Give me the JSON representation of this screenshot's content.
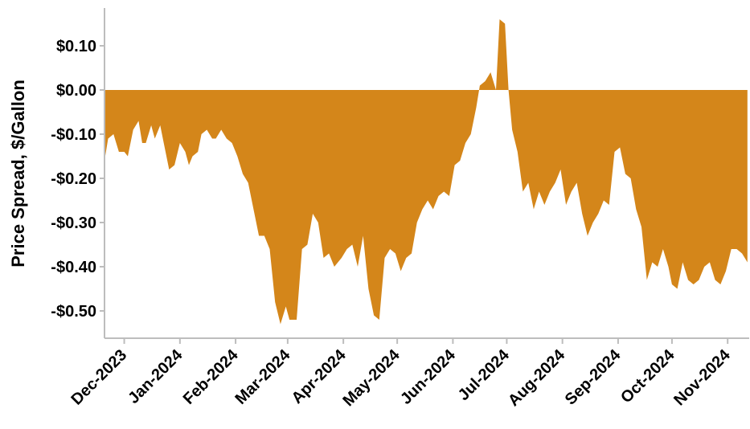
{
  "chart_data": {
    "type": "area",
    "title": "",
    "xlabel": "",
    "ylabel": "Price Spread, $/Gallon",
    "ylim": [
      -0.56,
      0.18
    ],
    "xlim": [
      "2023-11-20",
      "2024-11-27"
    ],
    "y_ticks": [
      0.1,
      0.0,
      -0.1,
      -0.2,
      -0.3,
      -0.4,
      -0.5
    ],
    "y_tick_labels": [
      "$0.10",
      "$0.00",
      "-$0.10",
      "-$0.20",
      "-$0.30",
      "-$0.40",
      "-$0.50"
    ],
    "x_ticks": [
      "2023-12-01",
      "2024-01-01",
      "2024-02-01",
      "2024-03-01",
      "2024-04-01",
      "2024-05-01",
      "2024-06-01",
      "2024-07-01",
      "2024-08-01",
      "2024-09-01",
      "2024-10-01",
      "2024-11-01"
    ],
    "x_tick_labels": [
      "Dec-2023",
      "Jan-2024",
      "Feb-2024",
      "Mar-2024",
      "Apr-2024",
      "May-2024",
      "Jun-2024",
      "Jul-2024",
      "Aug-2024",
      "Sep-2024",
      "Oct-2024",
      "Nov-2024"
    ],
    "fill_color": "#D4861A",
    "grid": false,
    "series": [
      {
        "name": "",
        "points": [
          [
            "2023-11-20",
            -0.16
          ],
          [
            "2023-11-22",
            -0.11
          ],
          [
            "2023-11-25",
            -0.1
          ],
          [
            "2023-11-28",
            -0.14
          ],
          [
            "2023-12-01",
            -0.14
          ],
          [
            "2023-12-03",
            -0.15
          ],
          [
            "2023-12-06",
            -0.09
          ],
          [
            "2023-12-09",
            -0.07
          ],
          [
            "2023-12-11",
            -0.12
          ],
          [
            "2023-12-13",
            -0.12
          ],
          [
            "2023-12-16",
            -0.08
          ],
          [
            "2023-12-18",
            -0.11
          ],
          [
            "2023-12-21",
            -0.08
          ],
          [
            "2023-12-23",
            -0.12
          ],
          [
            "2023-12-26",
            -0.18
          ],
          [
            "2023-12-29",
            -0.17
          ],
          [
            "2024-01-01",
            -0.12
          ],
          [
            "2024-01-04",
            -0.14
          ],
          [
            "2024-01-06",
            -0.17
          ],
          [
            "2024-01-08",
            -0.15
          ],
          [
            "2024-01-11",
            -0.14
          ],
          [
            "2024-01-13",
            -0.1
          ],
          [
            "2024-01-16",
            -0.09
          ],
          [
            "2024-01-19",
            -0.11
          ],
          [
            "2024-01-21",
            -0.11
          ],
          [
            "2024-01-24",
            -0.09
          ],
          [
            "2024-01-27",
            -0.11
          ],
          [
            "2024-01-30",
            -0.12
          ],
          [
            "2024-02-02",
            -0.15
          ],
          [
            "2024-02-05",
            -0.19
          ],
          [
            "2024-02-08",
            -0.21
          ],
          [
            "2024-02-11",
            -0.27
          ],
          [
            "2024-02-14",
            -0.33
          ],
          [
            "2024-02-17",
            -0.33
          ],
          [
            "2024-02-20",
            -0.36
          ],
          [
            "2024-02-23",
            -0.48
          ],
          [
            "2024-02-26",
            -0.53
          ],
          [
            "2024-02-29",
            -0.49
          ],
          [
            "2024-03-02",
            -0.52
          ],
          [
            "2024-03-06",
            -0.52
          ],
          [
            "2024-03-09",
            -0.36
          ],
          [
            "2024-03-12",
            -0.35
          ],
          [
            "2024-03-15",
            -0.28
          ],
          [
            "2024-03-18",
            -0.3
          ],
          [
            "2024-03-21",
            -0.38
          ],
          [
            "2024-03-24",
            -0.37
          ],
          [
            "2024-03-27",
            -0.4
          ],
          [
            "2024-03-31",
            -0.38
          ],
          [
            "2024-04-03",
            -0.36
          ],
          [
            "2024-04-06",
            -0.35
          ],
          [
            "2024-04-09",
            -0.4
          ],
          [
            "2024-04-12",
            -0.33
          ],
          [
            "2024-04-15",
            -0.45
          ],
          [
            "2024-04-18",
            -0.51
          ],
          [
            "2024-04-21",
            -0.52
          ],
          [
            "2024-04-24",
            -0.38
          ],
          [
            "2024-04-27",
            -0.36
          ],
          [
            "2024-04-30",
            -0.37
          ],
          [
            "2024-05-03",
            -0.41
          ],
          [
            "2024-05-06",
            -0.38
          ],
          [
            "2024-05-09",
            -0.37
          ],
          [
            "2024-05-12",
            -0.3
          ],
          [
            "2024-05-15",
            -0.27
          ],
          [
            "2024-05-18",
            -0.25
          ],
          [
            "2024-05-21",
            -0.27
          ],
          [
            "2024-05-24",
            -0.24
          ],
          [
            "2024-05-27",
            -0.23
          ],
          [
            "2024-05-30",
            -0.24
          ],
          [
            "2024-06-02",
            -0.17
          ],
          [
            "2024-06-05",
            -0.16
          ],
          [
            "2024-06-08",
            -0.12
          ],
          [
            "2024-06-11",
            -0.1
          ],
          [
            "2024-06-14",
            -0.04
          ],
          [
            "2024-06-16",
            0.01
          ],
          [
            "2024-06-19",
            0.02
          ],
          [
            "2024-06-22",
            0.04
          ],
          [
            "2024-06-25",
            0.0
          ],
          [
            "2024-06-27",
            0.16
          ],
          [
            "2024-06-30",
            0.15
          ],
          [
            "2024-07-02",
            0.0
          ],
          [
            "2024-07-04",
            -0.09
          ],
          [
            "2024-07-07",
            -0.14
          ],
          [
            "2024-07-10",
            -0.23
          ],
          [
            "2024-07-13",
            -0.21
          ],
          [
            "2024-07-16",
            -0.27
          ],
          [
            "2024-07-19",
            -0.23
          ],
          [
            "2024-07-22",
            -0.26
          ],
          [
            "2024-07-25",
            -0.23
          ],
          [
            "2024-07-28",
            -0.21
          ],
          [
            "2024-07-31",
            -0.18
          ],
          [
            "2024-08-03",
            -0.26
          ],
          [
            "2024-08-06",
            -0.23
          ],
          [
            "2024-08-09",
            -0.21
          ],
          [
            "2024-08-12",
            -0.28
          ],
          [
            "2024-08-15",
            -0.33
          ],
          [
            "2024-08-18",
            -0.3
          ],
          [
            "2024-08-21",
            -0.28
          ],
          [
            "2024-08-24",
            -0.25
          ],
          [
            "2024-08-27",
            -0.26
          ],
          [
            "2024-08-30",
            -0.14
          ],
          [
            "2024-09-02",
            -0.13
          ],
          [
            "2024-09-05",
            -0.19
          ],
          [
            "2024-09-08",
            -0.2
          ],
          [
            "2024-09-11",
            -0.27
          ],
          [
            "2024-09-14",
            -0.31
          ],
          [
            "2024-09-17",
            -0.43
          ],
          [
            "2024-09-20",
            -0.39
          ],
          [
            "2024-09-23",
            -0.4
          ],
          [
            "2024-09-26",
            -0.36
          ],
          [
            "2024-09-29",
            -0.4
          ],
          [
            "2024-10-01",
            -0.44
          ],
          [
            "2024-10-04",
            -0.45
          ],
          [
            "2024-10-07",
            -0.39
          ],
          [
            "2024-10-10",
            -0.43
          ],
          [
            "2024-10-13",
            -0.44
          ],
          [
            "2024-10-16",
            -0.43
          ],
          [
            "2024-10-19",
            -0.4
          ],
          [
            "2024-10-22",
            -0.39
          ],
          [
            "2024-10-25",
            -0.43
          ],
          [
            "2024-10-28",
            -0.44
          ],
          [
            "2024-10-31",
            -0.41
          ],
          [
            "2024-11-03",
            -0.36
          ],
          [
            "2024-11-06",
            -0.36
          ],
          [
            "2024-11-09",
            -0.37
          ],
          [
            "2024-11-12",
            -0.39
          ]
        ]
      }
    ]
  }
}
